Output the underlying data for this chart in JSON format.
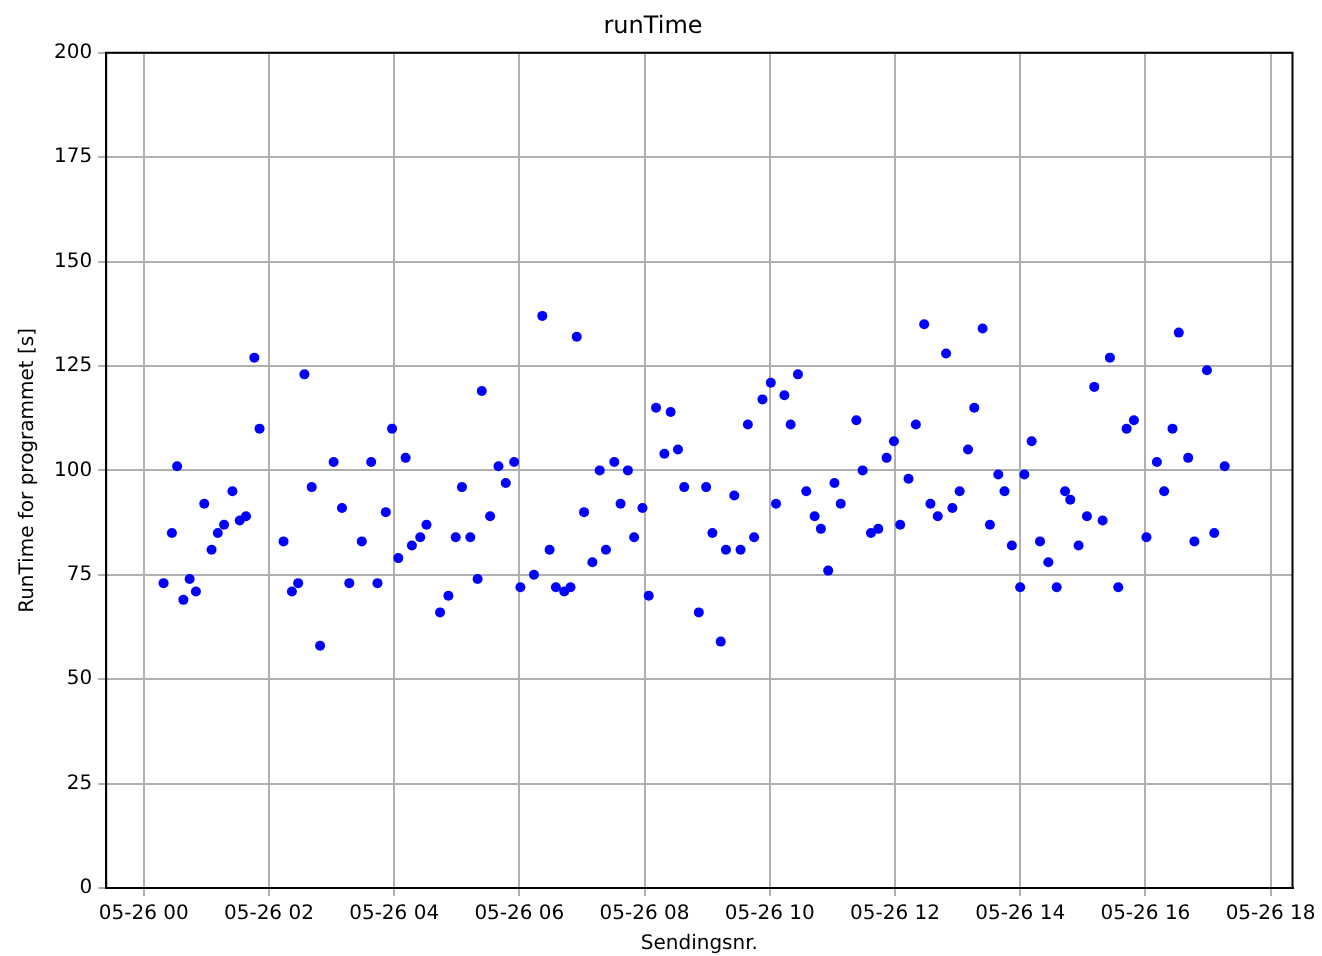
{
  "chart_data": {
    "type": "scatter",
    "title": "runTime",
    "xlabel": "Sendingsnr.",
    "ylabel": "RunTime for programmet [s]",
    "xlim": [
      "--05-25T23:24",
      "--05-26T18:21"
    ],
    "xticks": [
      {
        "value": "--05-26T00:00",
        "label": "05-26 00"
      },
      {
        "value": "--05-26T02:00",
        "label": "05-26 02"
      },
      {
        "value": "--05-26T04:00",
        "label": "05-26 04"
      },
      {
        "value": "--05-26T06:00",
        "label": "05-26 06"
      },
      {
        "value": "--05-26T08:00",
        "label": "05-26 08"
      },
      {
        "value": "--05-26T10:00",
        "label": "05-26 10"
      },
      {
        "value": "--05-26T12:00",
        "label": "05-26 12"
      },
      {
        "value": "--05-26T14:00",
        "label": "05-26 14"
      },
      {
        "value": "--05-26T16:00",
        "label": "05-26 16"
      },
      {
        "value": "--05-26T18:00",
        "label": "05-26 18"
      }
    ],
    "ylim": [
      0,
      200
    ],
    "yticks": [
      0,
      25,
      50,
      75,
      100,
      125,
      150,
      175,
      200
    ],
    "grid": true,
    "marker": "circle",
    "series": [
      {
        "color": "#0000ff",
        "x": [
          "--05-26T00:19",
          "--05-26T00:27",
          "--05-26T00:32",
          "--05-26T00:38",
          "--05-26T00:44",
          "--05-26T00:50",
          "--05-26T00:58",
          "--05-26T01:05",
          "--05-26T01:11",
          "--05-26T01:17",
          "--05-26T01:25",
          "--05-26T01:32",
          "--05-26T01:38",
          "--05-26T01:46",
          "--05-26T01:51",
          "--05-26T02:14",
          "--05-26T02:22",
          "--05-26T02:28",
          "--05-26T02:34",
          "--05-26T02:41",
          "--05-26T02:49",
          "--05-26T03:02",
          "--05-26T03:10",
          "--05-26T03:17",
          "--05-26T03:29",
          "--05-26T03:38",
          "--05-26T03:44",
          "--05-26T03:52",
          "--05-26T03:58",
          "--05-26T04:04",
          "--05-26T04:11",
          "--05-26T04:17",
          "--05-26T04:25",
          "--05-26T04:31",
          "--05-26T04:44",
          "--05-26T04:52",
          "--05-26T04:59",
          "--05-26T05:05",
          "--05-26T05:13",
          "--05-26T05:20",
          "--05-26T05:24",
          "--05-26T05:32",
          "--05-26T05:40",
          "--05-26T05:47",
          "--05-26T05:55",
          "--05-26T06:01",
          "--05-26T06:14",
          "--05-26T06:22",
          "--05-26T06:29",
          "--05-26T06:35",
          "--05-26T06:43",
          "--05-26T06:49",
          "--05-26T06:55",
          "--05-26T07:02",
          "--05-26T07:10",
          "--05-26T07:17",
          "--05-26T07:23",
          "--05-26T07:31",
          "--05-26T07:37",
          "--05-26T07:44",
          "--05-26T07:50",
          "--05-26T07:58",
          "--05-26T08:04",
          "--05-26T08:11",
          "--05-26T08:19",
          "--05-26T08:25",
          "--05-26T08:32",
          "--05-26T08:38",
          "--05-26T08:52",
          "--05-26T08:59",
          "--05-26T09:05",
          "--05-26T09:13",
          "--05-26T09:18",
          "--05-26T09:26",
          "--05-26T09:32",
          "--05-26T09:39",
          "--05-26T09:45",
          "--05-26T09:53",
          "--05-26T10:01",
          "--05-26T10:06",
          "--05-26T10:14",
          "--05-26T10:20",
          "--05-26T10:27",
          "--05-26T10:35",
          "--05-26T10:43",
          "--05-26T10:49",
          "--05-26T10:56",
          "--05-26T11:02",
          "--05-26T11:08",
          "--05-26T11:23",
          "--05-26T11:29",
          "--05-26T11:37",
          "--05-26T11:44",
          "--05-26T11:52",
          "--05-26T11:59",
          "--05-26T12:05",
          "--05-26T12:13",
          "--05-26T12:20",
          "--05-26T12:28",
          "--05-26T12:34",
          "--05-26T12:41",
          "--05-26T12:49",
          "--05-26T12:55",
          "--05-26T13:02",
          "--05-26T13:10",
          "--05-26T13:16",
          "--05-26T13:24",
          "--05-26T13:31",
          "--05-26T13:39",
          "--05-26T13:45",
          "--05-26T13:52",
          "--05-26T14:00",
          "--05-26T14:04",
          "--05-26T14:11",
          "--05-26T14:19",
          "--05-26T14:27",
          "--05-26T14:35",
          "--05-26T14:43",
          "--05-26T14:48",
          "--05-26T14:56",
          "--05-26T15:04",
          "--05-26T15:11",
          "--05-26T15:19",
          "--05-26T15:26",
          "--05-26T15:34",
          "--05-26T15:42",
          "--05-26T15:49",
          "--05-26T16:01",
          "--05-26T16:11",
          "--05-26T16:18",
          "--05-26T16:26",
          "--05-26T16:32",
          "--05-26T16:41",
          "--05-26T16:47",
          "--05-26T16:59",
          "--05-26T17:06",
          "--05-26T17:16"
        ],
        "values": [
          73,
          85,
          101,
          69,
          74,
          71,
          92,
          81,
          85,
          87,
          95,
          88,
          89,
          127,
          110,
          83,
          71,
          73,
          123,
          96,
          58,
          102,
          91,
          73,
          83,
          102,
          73,
          90,
          110,
          79,
          103,
          82,
          84,
          87,
          66,
          70,
          84,
          96,
          84,
          74,
          119,
          89,
          101,
          97,
          102,
          72,
          75,
          137,
          81,
          72,
          71,
          72,
          132,
          90,
          78,
          100,
          81,
          102,
          92,
          100,
          84,
          91,
          70,
          115,
          104,
          114,
          105,
          96,
          66,
          96,
          85,
          59,
          81,
          94,
          81,
          111,
          84,
          117,
          121,
          92,
          118,
          111,
          123,
          95,
          89,
          86,
          76,
          97,
          92,
          112,
          100,
          85,
          86,
          103,
          107,
          87,
          98,
          111,
          135,
          92,
          89,
          128,
          91,
          95,
          105,
          115,
          134,
          87,
          99,
          95,
          82,
          72,
          99,
          107,
          83,
          78,
          72,
          95,
          93,
          82,
          89,
          120,
          88,
          127,
          72,
          110,
          112,
          84,
          102,
          95,
          110,
          133,
          103,
          83,
          124,
          85,
          101
        ]
      }
    ]
  }
}
